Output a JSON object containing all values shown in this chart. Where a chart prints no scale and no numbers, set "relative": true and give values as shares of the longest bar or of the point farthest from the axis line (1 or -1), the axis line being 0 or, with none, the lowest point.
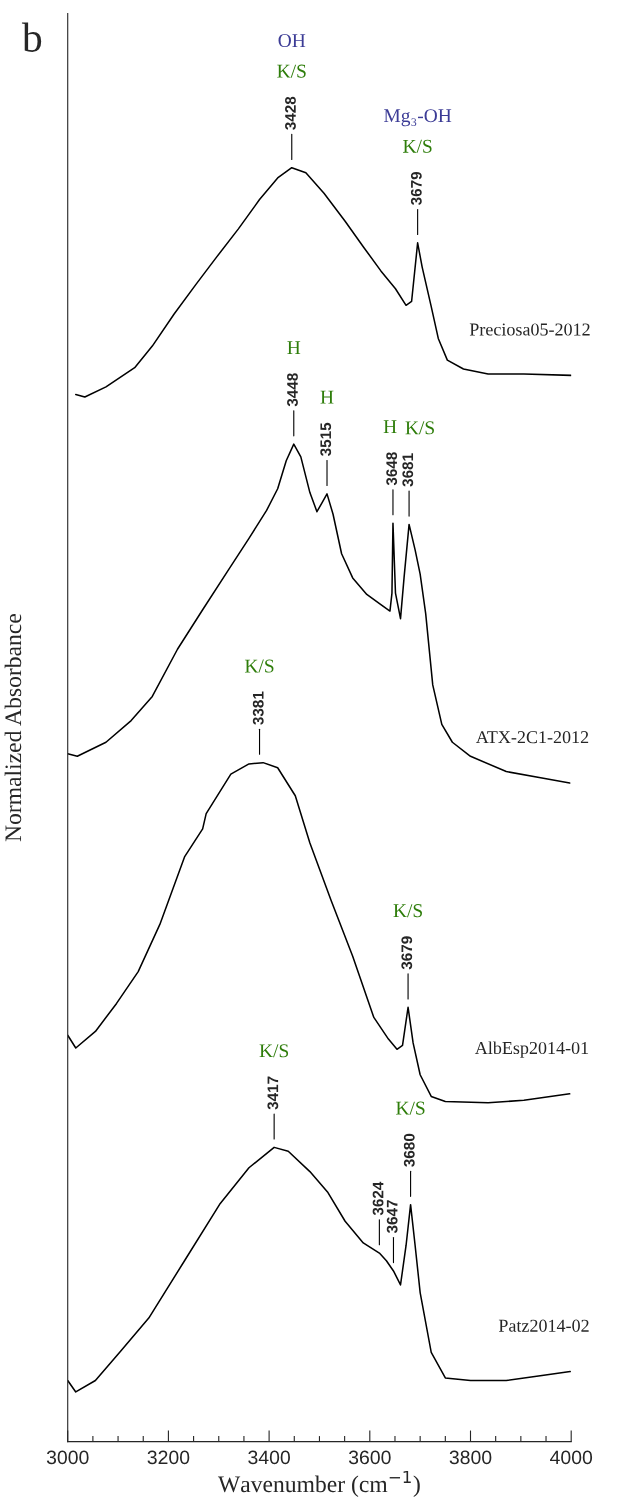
{
  "chart_data": {
    "type": "line",
    "relative": true,
    "tick_labels": "x",
    "xlabel": "Wavenumber (cm$^{−1}$)",
    "ylabel": "Normalized Absorbance",
    "xlim": [
      3000,
      4000
    ],
    "xticks": [
      3000,
      {
        "value": 3050,
        "label": null
      },
      {
        "value": 3100,
        "label": null
      },
      {
        "value": 3150,
        "label": null
      },
      3200,
      {
        "value": 3250,
        "label": null
      },
      {
        "value": 3300,
        "label": null
      },
      {
        "value": 3350,
        "label": null
      },
      3400,
      {
        "value": 3450,
        "label": null
      },
      {
        "value": 3500,
        "label": null
      },
      {
        "value": 3550,
        "label": null
      },
      3600,
      {
        "value": 3650,
        "label": null
      },
      {
        "value": 3700,
        "label": null
      },
      {
        "value": 3750,
        "label": null
      },
      3800,
      {
        "value": 3850,
        "label": null
      },
      {
        "value": 3900,
        "label": null
      },
      {
        "value": 3950,
        "label": null
      },
      4000
    ],
    "series": [
      {
        "name": "Preciosa05-2012",
        "color": "#000000",
        "x": [
          3016,
          3034,
          3076,
          3133,
          3168,
          3211,
          3254,
          3296,
          3339,
          3381,
          3417,
          3445,
          3473,
          3509,
          3551,
          3587,
          3622,
          3651,
          3672,
          3683,
          3695,
          3704,
          3722,
          3736,
          3754,
          3786,
          3835,
          3906,
          4000
        ],
        "values": [
          0.822,
          0.82,
          0.828,
          0.843,
          0.86,
          0.885,
          0.908,
          0.93,
          0.952,
          0.975,
          0.992,
          1.0,
          0.996,
          0.98,
          0.958,
          0.938,
          0.919,
          0.905,
          0.892,
          0.895,
          0.941,
          0.922,
          0.891,
          0.866,
          0.849,
          0.842,
          0.838,
          0.838,
          0.837
        ]
      },
      {
        "name": "ATX-2C1-2012",
        "color": "#000000",
        "x": [
          3000,
          3019,
          3076,
          3126,
          3168,
          3218,
          3268,
          3317,
          3360,
          3395,
          3417,
          3434,
          3449,
          3463,
          3481,
          3495,
          3505,
          3515,
          3527,
          3544,
          3566,
          3594,
          3622,
          3640,
          3644,
          3646,
          3651,
          3661,
          3668,
          3678,
          3690,
          3700,
          3711,
          3725,
          3743,
          3764,
          3800,
          3871,
          3942,
          3997
        ],
        "values": [
          0.54,
          0.538,
          0.549,
          0.566,
          0.585,
          0.622,
          0.653,
          0.683,
          0.709,
          0.731,
          0.748,
          0.77,
          0.783,
          0.773,
          0.745,
          0.73,
          0.737,
          0.744,
          0.728,
          0.697,
          0.678,
          0.665,
          0.657,
          0.652,
          0.666,
          0.721,
          0.666,
          0.646,
          0.678,
          0.72,
          0.7,
          0.681,
          0.65,
          0.594,
          0.563,
          0.549,
          0.538,
          0.526,
          0.521,
          0.517
        ]
      },
      {
        "name": "AlbEsp2014-01",
        "color": "#000000",
        "x": [
          3000,
          3016,
          3055,
          3097,
          3140,
          3183,
          3232,
          3268,
          3275,
          3324,
          3360,
          3388,
          3417,
          3452,
          3481,
          3523,
          3566,
          3608,
          3637,
          3654,
          3665,
          3676,
          3686,
          3700,
          3722,
          3750,
          3835,
          3906,
          3997
        ],
        "values": [
          0.319,
          0.309,
          0.322,
          0.344,
          0.369,
          0.406,
          0.459,
          0.481,
          0.493,
          0.524,
          0.532,
          0.533,
          0.529,
          0.507,
          0.47,
          0.425,
          0.381,
          0.333,
          0.316,
          0.308,
          0.311,
          0.341,
          0.313,
          0.288,
          0.271,
          0.267,
          0.266,
          0.268,
          0.273
        ]
      },
      {
        "name": "Patz2014-02",
        "color": "#000000",
        "x": [
          3000,
          3016,
          3055,
          3105,
          3161,
          3232,
          3303,
          3360,
          3410,
          3438,
          3481,
          3516,
          3551,
          3587,
          3619,
          3633,
          3647,
          3661,
          3672,
          3681,
          3690,
          3700,
          3722,
          3750,
          3800,
          3871,
          3942,
          3998
        ],
        "values": [
          0.048,
          0.039,
          0.048,
          0.071,
          0.097,
          0.142,
          0.187,
          0.215,
          0.231,
          0.228,
          0.212,
          0.196,
          0.173,
          0.156,
          0.148,
          0.142,
          0.134,
          0.123,
          0.154,
          0.186,
          0.154,
          0.117,
          0.07,
          0.05,
          0.048,
          0.048,
          0.052,
          0.055
        ]
      }
    ],
    "annotations": [
      "OH",
      "K/S",
      {
        "text": "3428",
        "x": 3445,
        "y": 1.0
      },
      "Mg₃-OH",
      "K/S",
      {
        "text": "3679",
        "x": 3695,
        "y": 0.941
      },
      "H",
      {
        "text": "3448",
        "x": 3449,
        "y": 0.783
      },
      "H",
      {
        "text": "3515",
        "x": 3515,
        "y": 0.744
      },
      "H",
      {
        "text": "3648",
        "x": 3646,
        "y": 0.721
      },
      "K/S",
      {
        "text": "3681",
        "x": 3678,
        "y": 0.72
      },
      "K/S",
      {
        "text": "3381",
        "x": 3381,
        "y": 0.533
      },
      "K/S",
      {
        "text": "3679",
        "x": 3676,
        "y": 0.341
      },
      "K/S",
      {
        "text": "3417",
        "x": 3410,
        "y": 0.231
      },
      {
        "text": "3624",
        "x": 3619,
        "y": 0.148
      },
      {
        "text": "3647",
        "x": 3647,
        "y": 0.134
      },
      "K/S",
      {
        "text": "3680",
        "x": 3681,
        "y": 0.186
      },
      "b"
    ]
  }
}
